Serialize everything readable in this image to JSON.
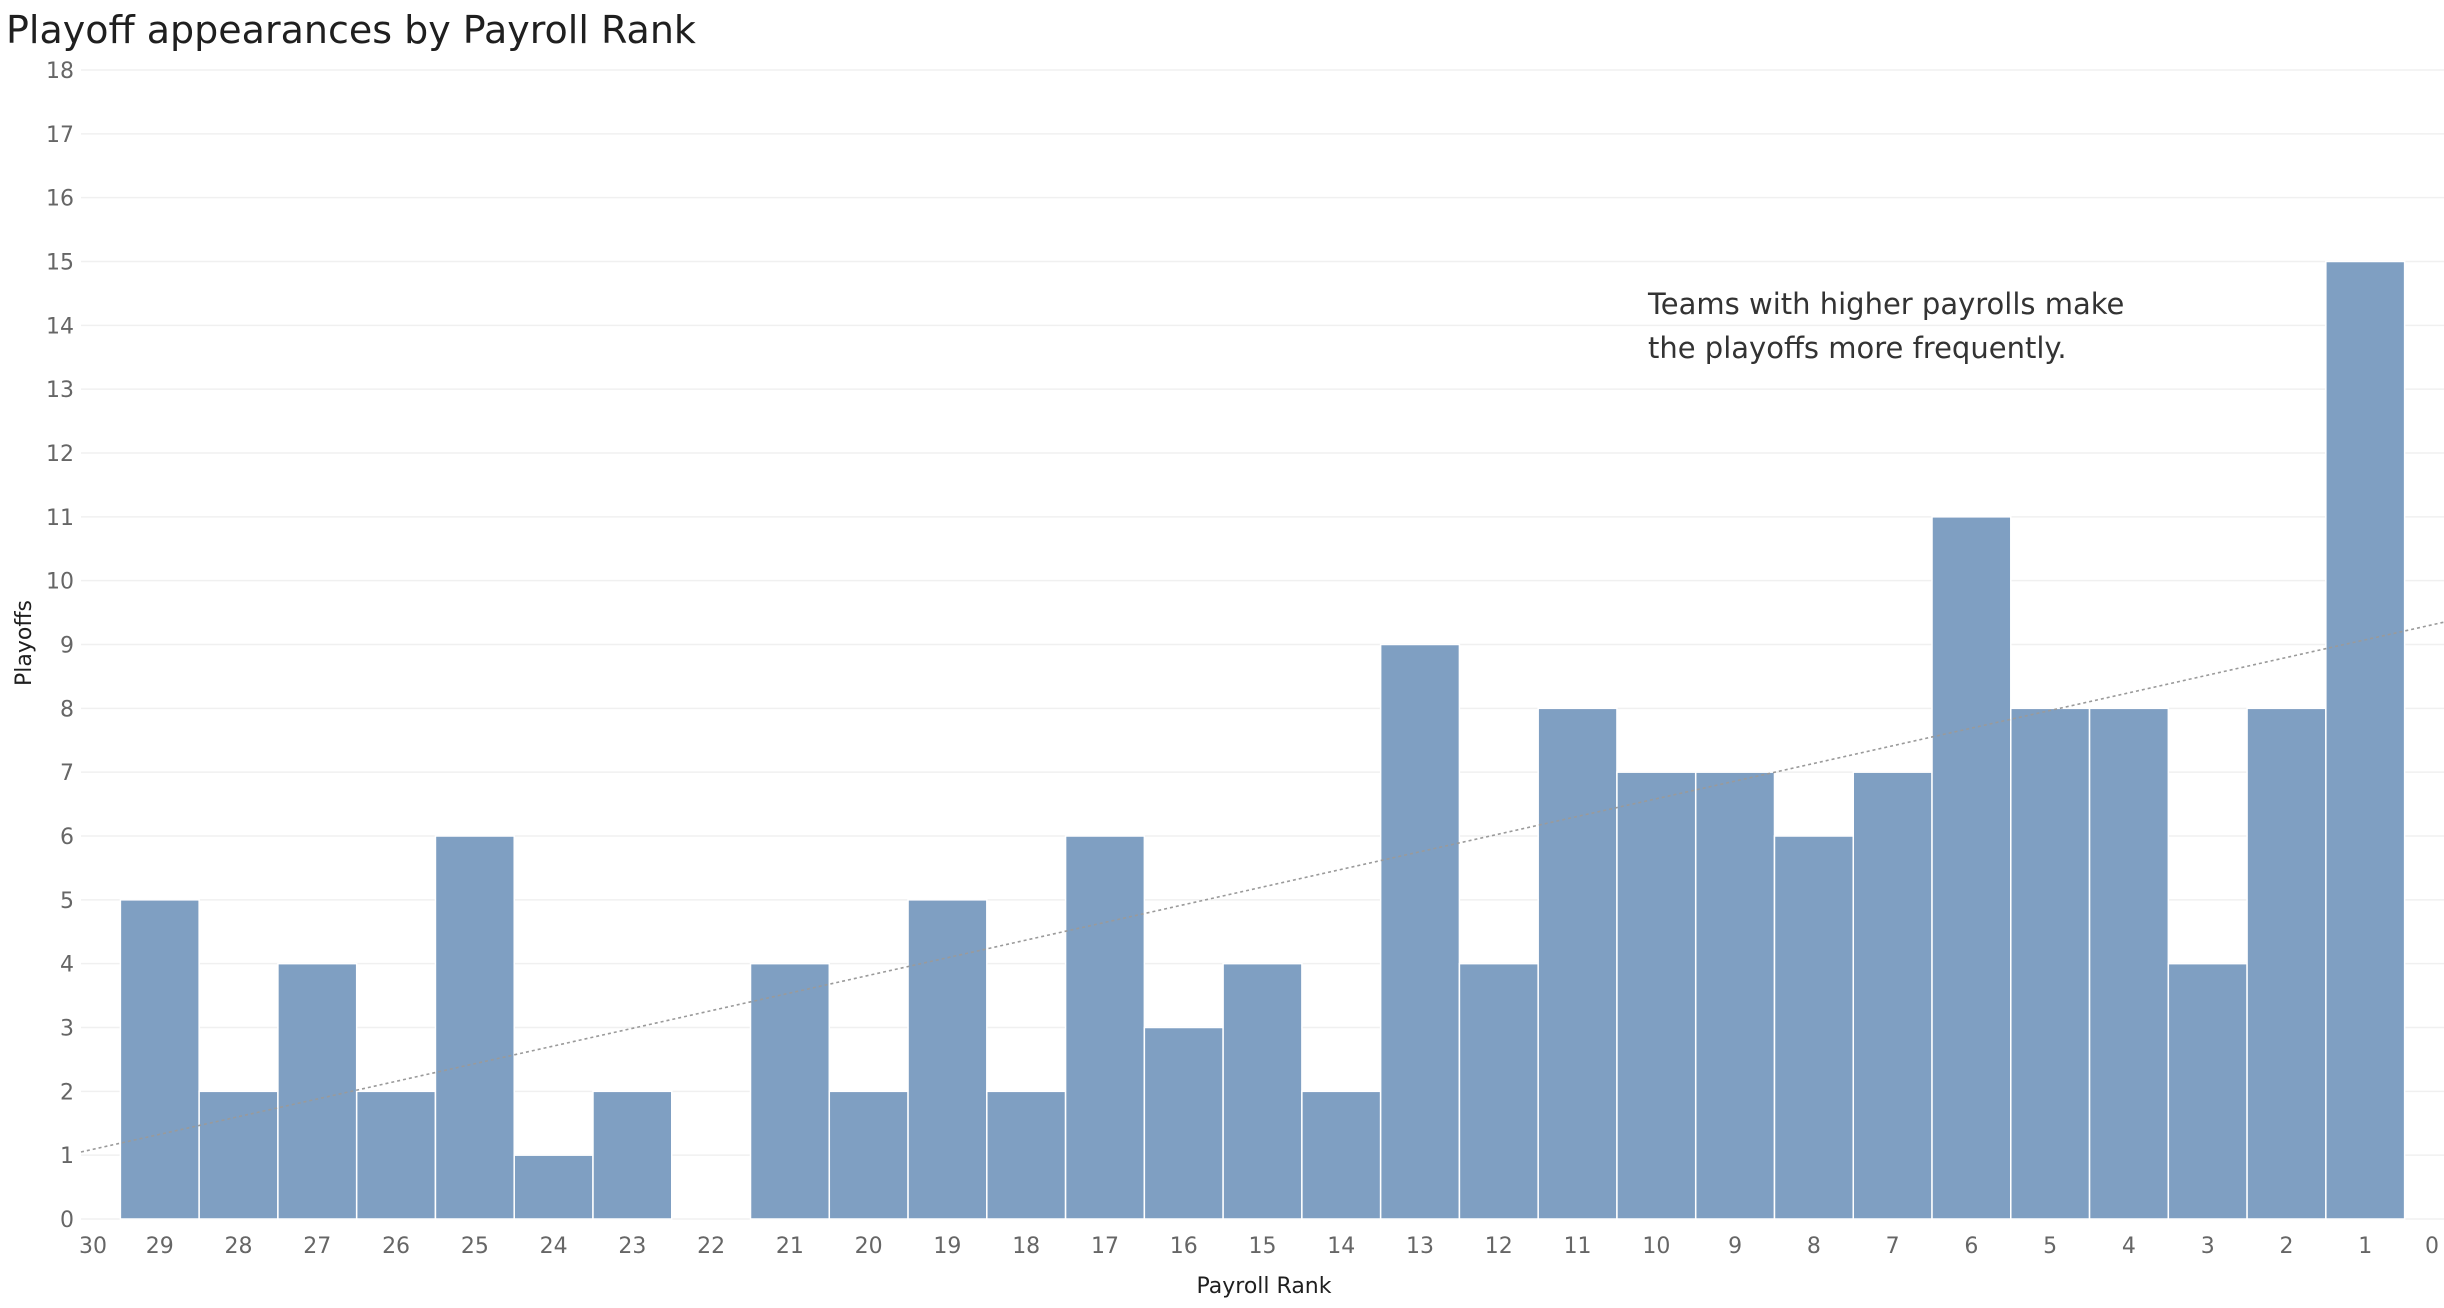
{
  "chart_data": {
    "type": "bar",
    "title": "Playoff appearances by Payroll Rank",
    "xlabel": "Payroll Rank",
    "ylabel": "Playoffs",
    "x_axis_reversed": true,
    "x_ticks": [
      30,
      29,
      28,
      27,
      26,
      25,
      24,
      23,
      22,
      21,
      20,
      19,
      18,
      17,
      16,
      15,
      14,
      13,
      12,
      11,
      10,
      9,
      8,
      7,
      6,
      5,
      4,
      3,
      2,
      1,
      0
    ],
    "y_ticks": [
      0,
      1,
      2,
      3,
      4,
      5,
      6,
      7,
      8,
      9,
      10,
      11,
      12,
      13,
      14,
      15,
      16,
      17,
      18
    ],
    "xlim": [
      30,
      0
    ],
    "ylim": [
      0,
      18
    ],
    "categories": [
      29,
      28,
      27,
      26,
      25,
      24,
      23,
      22,
      21,
      20,
      19,
      18,
      17,
      16,
      15,
      14,
      13,
      12,
      11,
      10,
      9,
      8,
      7,
      6,
      5,
      4,
      3,
      2,
      1
    ],
    "values": [
      5,
      2,
      4,
      2,
      6,
      1,
      2,
      0,
      4,
      2,
      5,
      2,
      6,
      3,
      4,
      2,
      9,
      4,
      8,
      7,
      7,
      6,
      7,
      11,
      8,
      8,
      4,
      8,
      15
    ],
    "trend_line": {
      "style": "dotted",
      "at_rank_30": 1.05,
      "at_rank_0": 9.35
    },
    "annotation": "Teams with higher payrolls make the playoffs more frequently.",
    "annotation_lines": [
      "Teams with higher payrolls make",
      "the playoffs more frequently."
    ],
    "bar_color": "#7f9fc2",
    "trend_color": "#9a9a9a",
    "grid": true,
    "legend": "none"
  }
}
